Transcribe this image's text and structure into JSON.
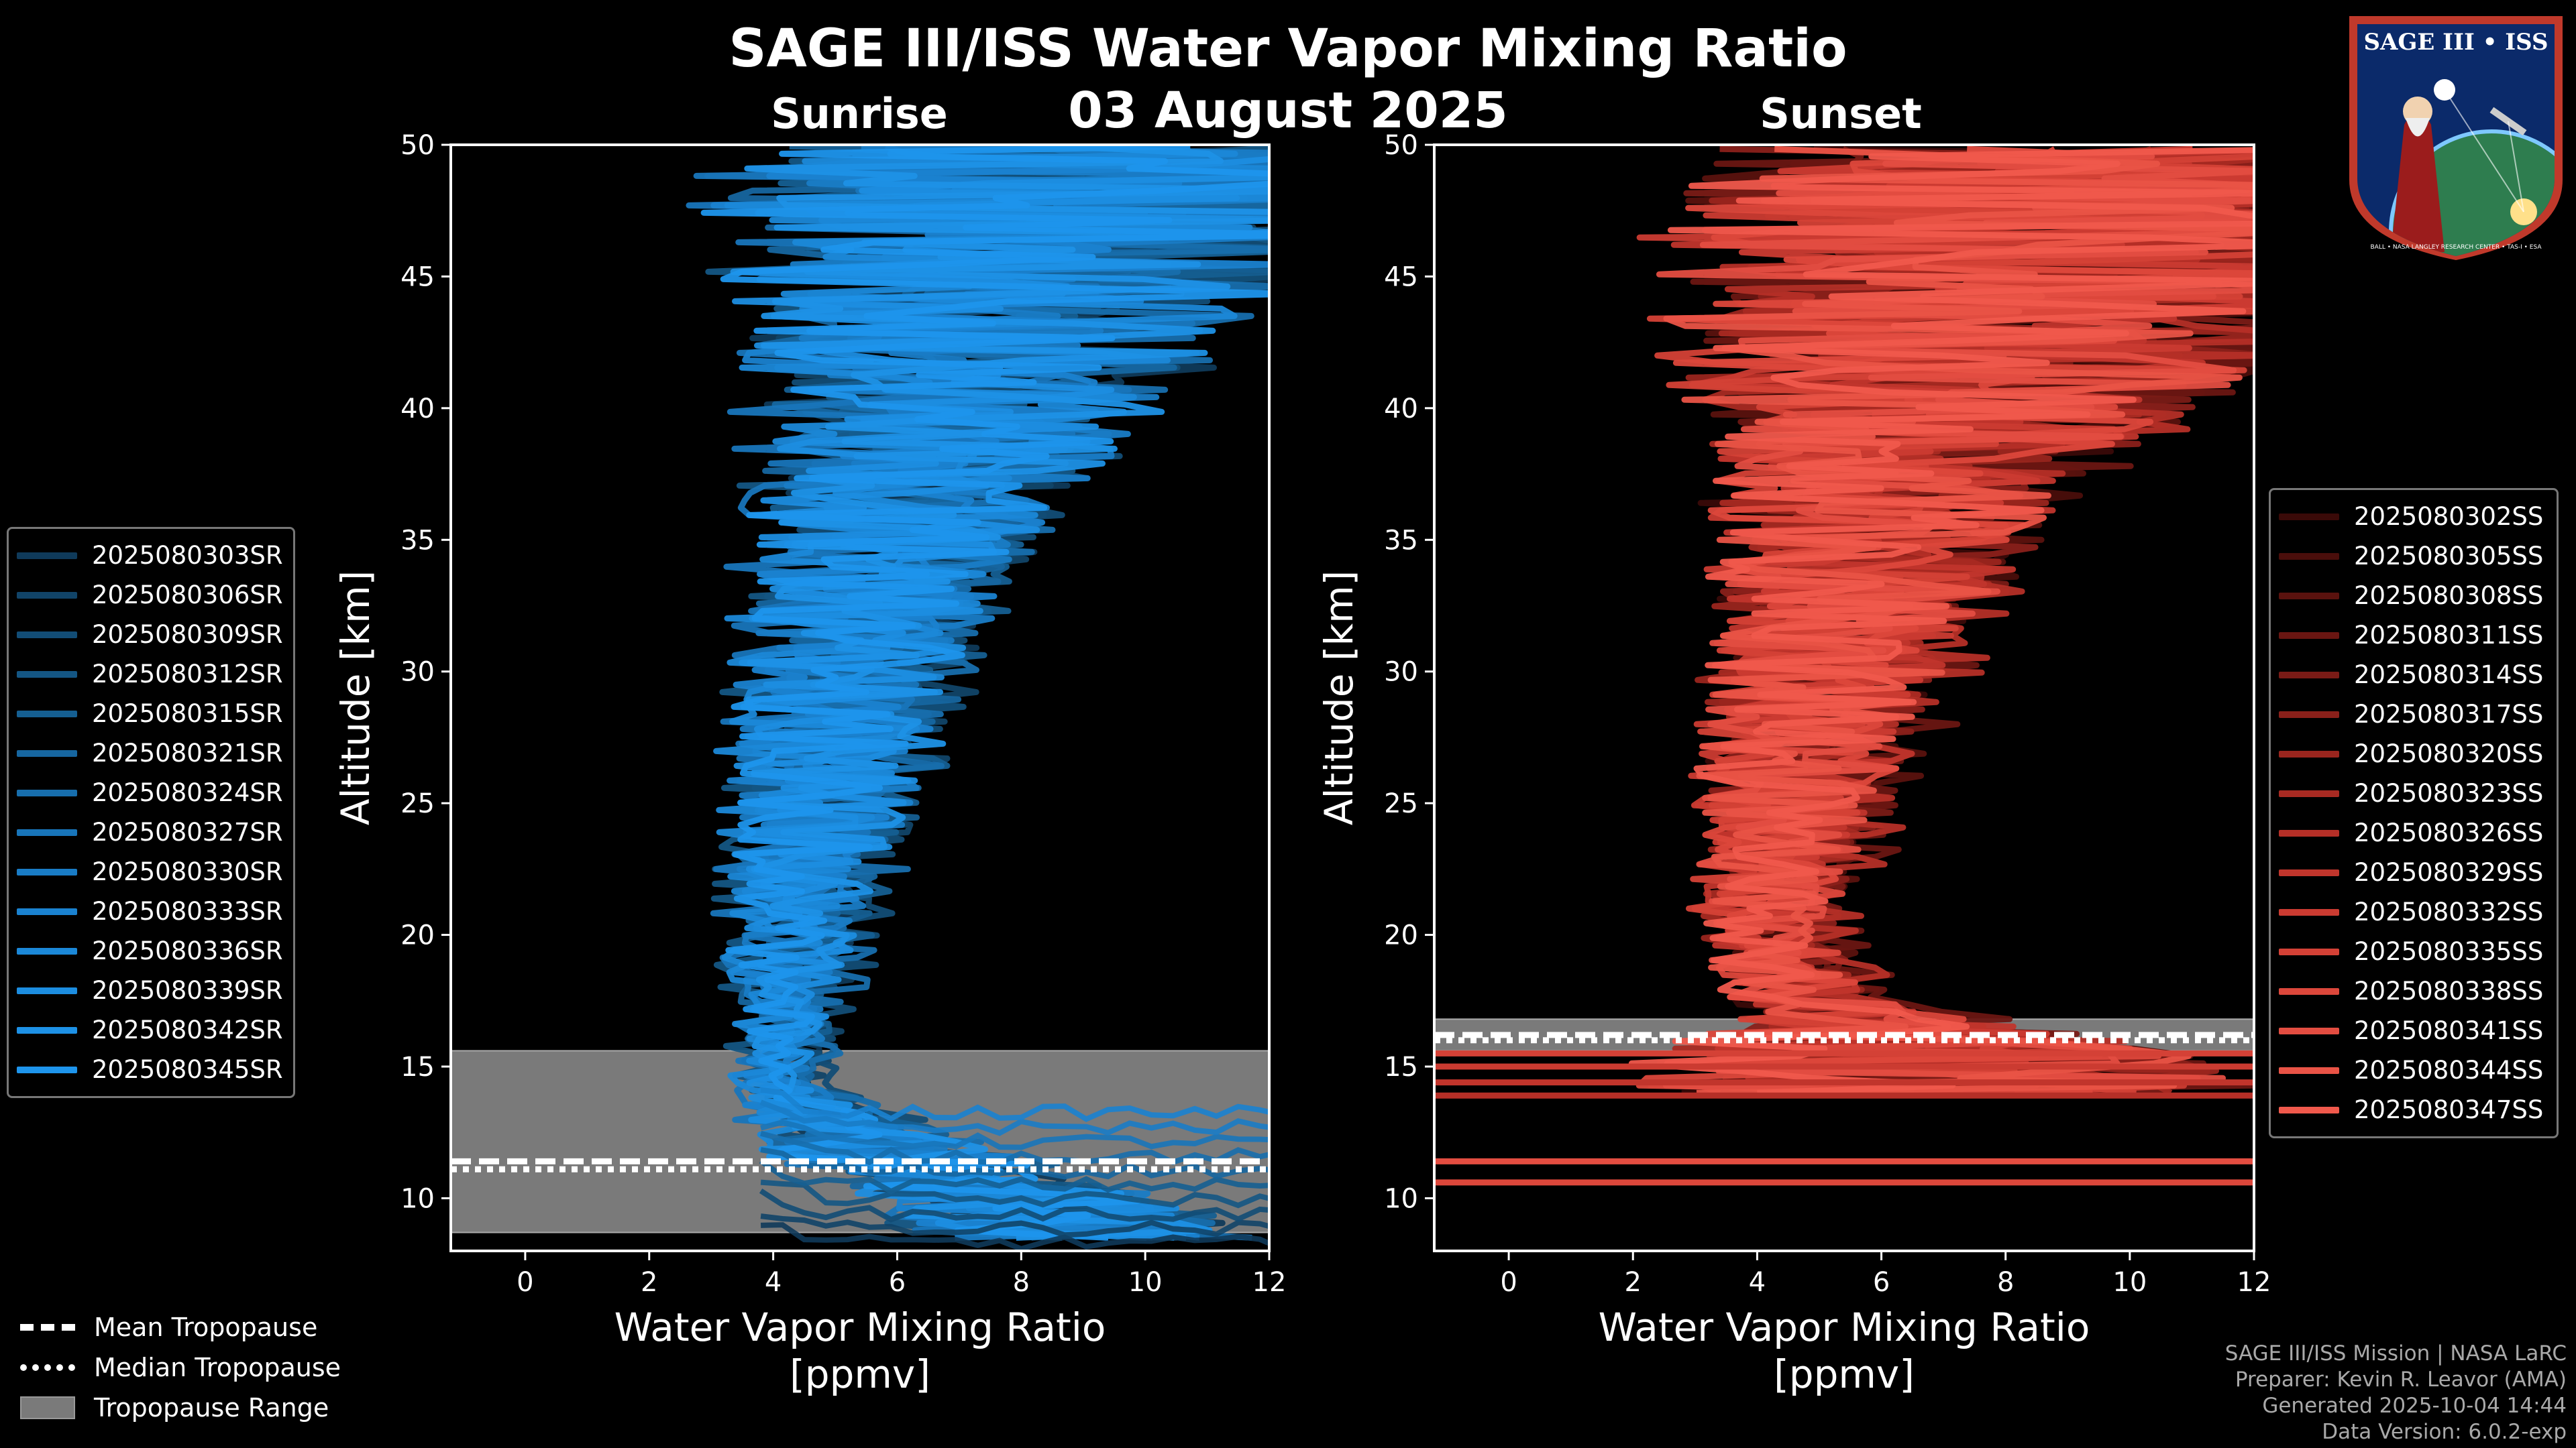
{
  "title": "SAGE III/ISS Water Vapor Mixing Ratio",
  "date": "03 August 2025",
  "logo": {
    "text": "SAGE III • ISS",
    "ring_text": "BALL • NASA LANGLEY RESEARCH CENTER • TAS-I • ESA"
  },
  "colors": {
    "sunrise": "#1e8fd8",
    "sunset": "#f0604c",
    "tropopause_range": "#7a7a7a",
    "background": "#000000"
  },
  "chart_data": [
    {
      "type": "line",
      "title": "Sunrise",
      "xlabel": "Water Vapor Mixing Ratio\n[ppmv]",
      "xlabel_lines": [
        "Water Vapor Mixing Ratio",
        "[ppmv]"
      ],
      "ylabel": "Altitude [km]",
      "xlim": [
        -1.2,
        12
      ],
      "ylim": [
        8,
        50
      ],
      "xticks": [
        0,
        2,
        4,
        6,
        8,
        10,
        12
      ],
      "yticks": [
        10,
        15,
        20,
        25,
        30,
        35,
        40,
        45,
        50
      ],
      "legend_position": "center-left",
      "series_names": [
        "2025080303SR",
        "2025080306SR",
        "2025080309SR",
        "2025080312SR",
        "2025080315SR",
        "2025080321SR",
        "2025080324SR",
        "2025080327SR",
        "2025080330SR",
        "2025080333SR",
        "2025080336SR",
        "2025080339SR",
        "2025080342SR",
        "2025080345SR"
      ],
      "series_colors": [
        "#0f3a5a",
        "#114468",
        "#124d76",
        "#145684",
        "#155f92",
        "#1666a0",
        "#176ead",
        "#1875ba",
        "#197cc6",
        "#1a82d0",
        "#1b88d8",
        "#1c8de0",
        "#1d91e6",
        "#1e95ec"
      ],
      "profile_shape": {
        "altitude_km": [
          8.5,
          10,
          12,
          14,
          15,
          17,
          20,
          23,
          26,
          29,
          32,
          35,
          38,
          41,
          44,
          47,
          50
        ],
        "mean_ppmv": [
          9,
          8,
          5.5,
          4.2,
          4.1,
          4.2,
          4.4,
          4.6,
          4.9,
          5.2,
          5.5,
          5.9,
          6.5,
          7.2,
          7.8,
          8.5,
          9.2
        ],
        "spread_ppmv": [
          2.5,
          2.5,
          1.8,
          0.6,
          0.5,
          0.8,
          1.0,
          1.3,
          1.6,
          1.8,
          2.0,
          2.3,
          2.8,
          3.5,
          4.5,
          5.5,
          6.0
        ]
      },
      "tropopause": {
        "mean_km": 11.4,
        "median_km": 11.1,
        "range_km": [
          8.7,
          15.6
        ]
      }
    },
    {
      "type": "line",
      "title": "Sunset",
      "xlabel": "Water Vapor Mixing Ratio\n[ppmv]",
      "xlabel_lines": [
        "Water Vapor Mixing Ratio",
        "[ppmv]"
      ],
      "ylabel": "Altitude [km]",
      "xlim": [
        -1.2,
        12
      ],
      "ylim": [
        8,
        50
      ],
      "xticks": [
        0,
        2,
        4,
        6,
        8,
        10,
        12
      ],
      "yticks": [
        10,
        15,
        20,
        25,
        30,
        35,
        40,
        45,
        50
      ],
      "legend_position": "center-right",
      "series_names": [
        "2025080302SS",
        "2025080305SS",
        "2025080308SS",
        "2025080311SS",
        "2025080314SS",
        "2025080317SS",
        "2025080320SS",
        "2025080323SS",
        "2025080326SS",
        "2025080329SS",
        "2025080332SS",
        "2025080335SS",
        "2025080338SS",
        "2025080341SS",
        "2025080344SS",
        "2025080347SS"
      ],
      "series_colors": [
        "#3a0a08",
        "#4a0e0b",
        "#5a120e",
        "#6a1612",
        "#7a1b16",
        "#8a201a",
        "#9a251e",
        "#a82a22",
        "#b52f27",
        "#c1352c",
        "#cb3b31",
        "#d44136",
        "#dc473b",
        "#e34d41",
        "#e95346",
        "#f0594c"
      ],
      "profile_shape": {
        "altitude_km": [
          14,
          15,
          16,
          17,
          18,
          20,
          23,
          26,
          29,
          32,
          35,
          38,
          41,
          44,
          47,
          50
        ],
        "mean_ppmv": [
          7,
          7,
          6.5,
          5.5,
          4.8,
          4.3,
          4.5,
          4.9,
          5.2,
          5.6,
          6.0,
          6.6,
          7.4,
          8.5,
          9.0,
          9.5
        ],
        "spread_ppmv": [
          5,
          5,
          3.5,
          1.6,
          1.2,
          1.0,
          1.3,
          1.6,
          1.9,
          2.2,
          2.6,
          3.2,
          4.5,
          6.0,
          6.5,
          6.5
        ]
      },
      "flat_lines_km": [
        13.9,
        14.4,
        15.0,
        15.5,
        10.6,
        11.4
      ],
      "tropopause": {
        "mean_km": 16.2,
        "median_km": 16.0,
        "range_km": [
          15.6,
          16.8
        ]
      }
    }
  ],
  "tropopause_legend": [
    "Mean Tropopause",
    "Median Tropopause",
    "Tropopause Range"
  ],
  "credits": [
    "SAGE III/ISS Mission | NASA LaRC",
    "Preparer: Kevin R. Leavor (AMA)",
    "Generated 2025-10-04 14:44",
    "Data Version: 6.0.2-exp"
  ]
}
